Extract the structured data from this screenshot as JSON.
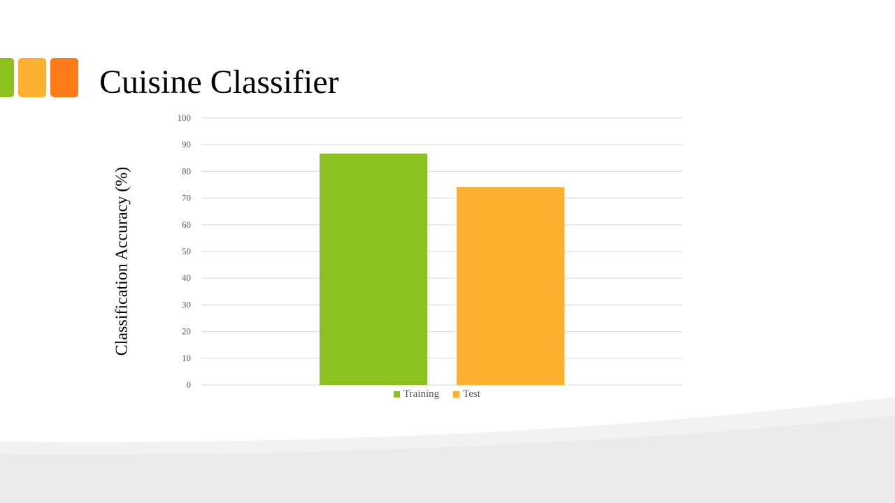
{
  "slide": {
    "title": "Cuisine Classifier",
    "accent_colors": [
      "#8cc11f",
      "#fbb02f",
      "#fc7a17"
    ],
    "background_wave_colors": [
      "#ebebeb",
      "#f2f2f2"
    ]
  },
  "chart_data": {
    "type": "bar",
    "title": "",
    "xlabel": "",
    "ylabel": "Classification Accuracy (%)",
    "ylim": [
      0,
      100
    ],
    "yticks": [
      0,
      10,
      20,
      30,
      40,
      50,
      60,
      70,
      80,
      90,
      100
    ],
    "grid": true,
    "legend_position": "bottom",
    "categories": [
      ""
    ],
    "series": [
      {
        "name": "Training",
        "color": "#8cc11f",
        "values": [
          86.7
        ]
      },
      {
        "name": "Test",
        "color": "#fbb02f",
        "values": [
          74.1
        ]
      }
    ]
  }
}
